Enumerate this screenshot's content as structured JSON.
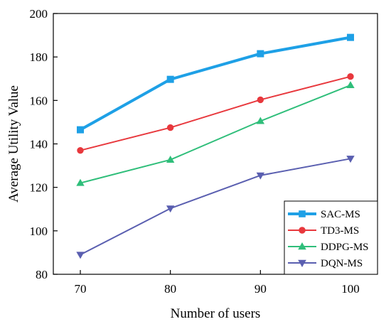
{
  "chart_data": {
    "type": "line",
    "xlabel": "Number of users",
    "ylabel": "Average Utility Value",
    "x": [
      70,
      80,
      90,
      100
    ],
    "xlim": [
      67,
      103
    ],
    "ylim": [
      80,
      200
    ],
    "xticks": [
      70,
      80,
      90,
      100
    ],
    "yticks": [
      80,
      100,
      120,
      140,
      160,
      180,
      200
    ],
    "grid": false,
    "legend_position": "bottom-right",
    "series": [
      {
        "name": "SAC-MS",
        "values": [
          146.5,
          169.7,
          181.5,
          189.0
        ],
        "color": "#1ea0e6",
        "marker": "square",
        "emphasis": true
      },
      {
        "name": "TD3-MS",
        "values": [
          137.0,
          147.5,
          160.3,
          171.0
        ],
        "color": "#e8383d",
        "marker": "circle"
      },
      {
        "name": "DDPG-MS",
        "values": [
          122.0,
          132.7,
          150.5,
          167.0
        ],
        "color": "#2fbe7a",
        "marker": "triangle-up"
      },
      {
        "name": "DQN-MS",
        "values": [
          89.0,
          110.3,
          125.5,
          133.2
        ],
        "color": "#5a5fb0",
        "marker": "triangle-down"
      }
    ]
  }
}
